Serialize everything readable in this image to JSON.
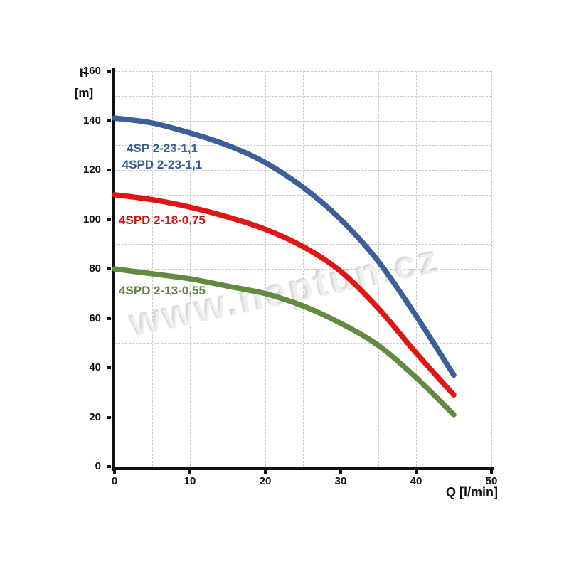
{
  "page": {
    "background": "#ffffff"
  },
  "chart_data": {
    "type": "line",
    "title": "",
    "xlabel": "Q [l/min]",
    "ylabel_lines": [
      "H",
      "[m]"
    ],
    "xlim": [
      0,
      50
    ],
    "ylim": [
      0,
      160
    ],
    "x_ticks": [
      0,
      10,
      20,
      30,
      40,
      50
    ],
    "y_ticks": [
      0,
      20,
      40,
      60,
      80,
      100,
      120,
      140,
      160
    ],
    "x_grid_step": 5,
    "y_grid_step": 10,
    "grid_style": "dashed",
    "grid_color": "#c9c9c9",
    "axis_color": "#111111",
    "legend_position": "inline-labels",
    "x": [
      0,
      5,
      10,
      15,
      20,
      25,
      30,
      35,
      40,
      45
    ],
    "series": [
      {
        "name": "4SP 2-23-1,1 / 4SPD 2-23-1,1",
        "labels": [
          "4SP 2-23-1,1",
          "4SPD 2-23-1,1"
        ],
        "color": "#3c5f9a",
        "label_color": "#365f91",
        "values": [
          141,
          139,
          135,
          130,
          123,
          113,
          100,
          83,
          61,
          37
        ]
      },
      {
        "name": "4SPD 2-18-0,75",
        "labels": [
          "4SPD 2-18-0,75"
        ],
        "color": "#e01616",
        "label_color": "#d31414",
        "values": [
          110,
          108,
          105,
          101,
          96,
          89,
          79,
          64,
          46,
          29
        ]
      },
      {
        "name": "4SPD 2-13-0,55",
        "labels": [
          "4SPD 2-13-0,55"
        ],
        "color": "#648a42",
        "label_color": "#5f8540",
        "values": [
          80,
          78,
          76,
          73,
          70,
          65,
          58,
          49,
          36,
          21
        ]
      }
    ],
    "watermark": "www.neptun.cz"
  }
}
